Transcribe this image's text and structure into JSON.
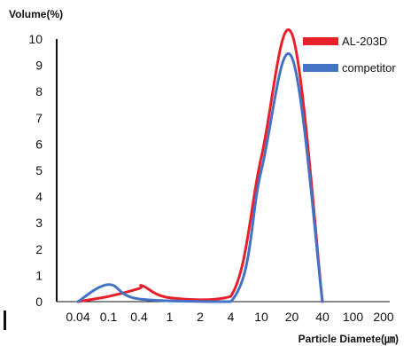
{
  "chart_data": {
    "type": "line",
    "title": "Volume(%)",
    "xlabel": "Particle Diamete(㎛)",
    "ylabel": "",
    "x_ticks": [
      "0.04",
      "0.1",
      "0.4",
      "1",
      "2",
      "4",
      "10",
      "20",
      "40",
      "100",
      "200"
    ],
    "y_ticks": [
      "0",
      "1",
      "2",
      "3",
      "4",
      "5",
      "6",
      "7",
      "8",
      "9",
      "10"
    ],
    "ylim": [
      0,
      10
    ],
    "grid": false,
    "legend_position": "top-right",
    "series": [
      {
        "name": "AL-203D",
        "color": "#e8202a",
        "points": [
          {
            "x": "0.04",
            "y": 0
          },
          {
            "x": "0.1",
            "y": 0.2
          },
          {
            "x": "0.4",
            "y": 0.5
          },
          {
            "x": "0.4",
            "y": 0.6
          },
          {
            "x": "1",
            "y": 0.15
          },
          {
            "x": "4",
            "y": 0.2
          },
          {
            "x": "10",
            "y": 5.5
          },
          {
            "x": "20",
            "y": 10.2
          },
          {
            "x": "40",
            "y": 0
          }
        ]
      },
      {
        "name": "competitor",
        "color": "#4472c4",
        "points": [
          {
            "x": "0.04",
            "y": 0
          },
          {
            "x": "0.1",
            "y": 0.65
          },
          {
            "x": "0.4",
            "y": 0.1
          },
          {
            "x": "4",
            "y": 0
          },
          {
            "x": "10",
            "y": 5
          },
          {
            "x": "20",
            "y": 9.3
          },
          {
            "x": "40",
            "y": 0
          }
        ]
      }
    ]
  }
}
